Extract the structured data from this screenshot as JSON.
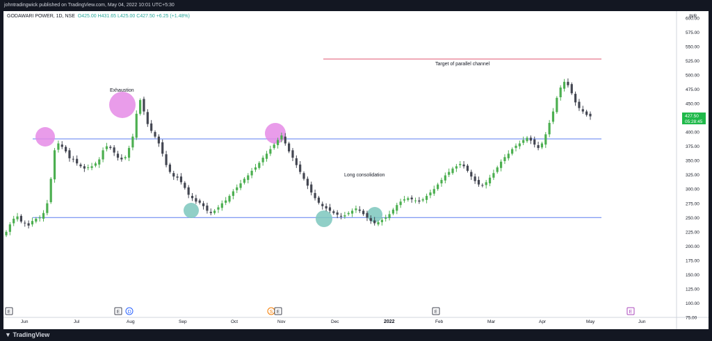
{
  "header": {
    "publish_line": "johntradingwick published on TradingView.com, May 04, 2022 10:01 UTC+5:30"
  },
  "legend": {
    "symbol": "GODAWARI POWER, 1D, NSE",
    "open": "O425.00",
    "high": "H431.65",
    "low": "L425.00",
    "close": "C427.50",
    "change": "+6.25 (+1.48%)"
  },
  "currency": "INR",
  "price_label": {
    "price": "427.50",
    "countdown": "05:28:45"
  },
  "annotations": {
    "exhaustion": "Exhaustion",
    "target": "Target of parallel channel",
    "consolidation": "Long consolidation"
  },
  "event_markers": [
    "E",
    "E",
    "D",
    "S",
    "E",
    "E",
    "E"
  ],
  "colors": {
    "up": "#4caf50",
    "down": "#434651",
    "support_line": "#5b7cf0",
    "target_line": "#e0536f",
    "pink_circle": "#e58be6",
    "teal_circle": "#7cc7bd",
    "price_badge": "#1fb94a"
  },
  "footer": {
    "brand": "TradingView"
  },
  "chart_data": {
    "type": "candlestick",
    "title": "GODAWARI POWER, 1D, NSE",
    "x": [
      "Jun",
      "Jul",
      "Aug",
      "Sep",
      "Oct",
      "Nov",
      "Dec",
      "2022",
      "Feb",
      "Mar",
      "Apr",
      "May",
      "Jun"
    ],
    "y_ticks": [
      "600.00",
      "575.00",
      "550.00",
      "525.00",
      "500.00",
      "475.00",
      "450.00",
      "425.00",
      "400.00",
      "375.00",
      "350.00",
      "325.00",
      "300.00",
      "275.00",
      "250.00",
      "225.00",
      "200.00",
      "175.00",
      "150.00",
      "125.00",
      "100.00",
      "75.00"
    ],
    "ylim": [
      75,
      612
    ],
    "horizontal_lines": [
      {
        "price": 388,
        "label": ""
      },
      {
        "price": 250,
        "label": ""
      },
      {
        "price": 528,
        "label": "Target of parallel channel"
      }
    ],
    "closes": [
      225,
      238,
      248,
      252,
      243,
      240,
      236,
      244,
      248,
      250,
      258,
      275,
      318,
      368,
      380,
      374,
      366,
      354,
      352,
      345,
      340,
      336,
      338,
      340,
      345,
      352,
      368,
      375,
      372,
      364,
      355,
      352,
      356,
      372,
      392,
      432,
      456,
      436,
      414,
      402,
      392,
      380,
      362,
      342,
      330,
      322,
      320,
      312,
      302,
      290,
      284,
      278,
      276,
      270,
      262,
      258,
      262,
      268,
      275,
      280,
      288,
      296,
      303,
      310,
      318,
      324,
      332,
      338,
      346,
      355,
      362,
      370,
      378,
      386,
      394,
      380,
      366,
      355,
      342,
      330,
      318,
      306,
      294,
      284,
      276,
      270,
      266,
      262,
      258,
      255,
      252,
      254,
      258,
      262,
      266,
      262,
      256,
      250,
      244,
      240,
      242,
      246,
      250,
      256,
      264,
      272,
      278,
      282,
      284,
      282,
      280,
      278,
      282,
      288,
      294,
      300,
      308,
      316,
      324,
      330,
      336,
      340,
      344,
      340,
      332,
      322,
      314,
      308,
      306,
      312,
      320,
      328,
      338,
      348,
      356,
      362,
      370,
      376,
      380,
      386,
      390,
      385,
      378,
      372,
      380,
      396,
      416,
      436,
      460,
      478,
      488,
      482,
      468,
      452,
      442,
      436,
      430,
      427.5
    ]
  }
}
